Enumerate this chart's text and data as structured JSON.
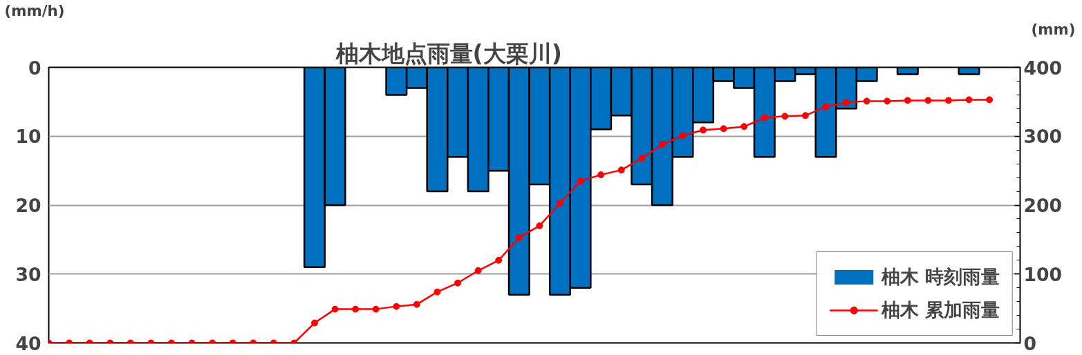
{
  "chart_data": {
    "type": "bar",
    "title": "柚木地点雨量(大栗川)",
    "ylabel": "(mm/h)",
    "y2label": "(mm)",
    "categories": [
      null,
      null,
      null,
      null,
      null,
      null,
      null,
      null,
      null,
      null,
      null,
      null,
      null,
      null,
      null,
      null,
      null,
      null,
      null,
      null,
      null,
      null,
      null,
      null,
      null,
      null,
      null,
      null,
      null,
      null,
      null,
      null,
      null,
      null,
      null,
      null,
      null,
      null,
      null,
      null,
      null,
      null,
      null,
      null,
      null,
      null,
      null
    ],
    "ylim": [
      40,
      0
    ],
    "yticks": [
      0,
      10,
      20,
      30,
      40
    ],
    "y2lim": [
      0,
      400
    ],
    "y2ticks": [
      0,
      100,
      200,
      300,
      400
    ],
    "grid": "y",
    "legend": "bottom right",
    "tick_labels": "y",
    "series": [
      {
        "name": "柚木 時刻雨量",
        "color": "#0070c0",
        "values": [
          0,
          0,
          0,
          0,
          0,
          0,
          0,
          0,
          0,
          0,
          0,
          0,
          0,
          29,
          20,
          0,
          0,
          4,
          3,
          18,
          13,
          18,
          15,
          33,
          17,
          33,
          32,
          9,
          7,
          17,
          20,
          13,
          8,
          2,
          3,
          13,
          2,
          1,
          13,
          6,
          2,
          0,
          1,
          0,
          0,
          1,
          0
        ]
      },
      {
        "name": "柚木 累加雨量",
        "type": "line",
        "axis": "y2",
        "color": "#ff0000",
        "marker": "circle",
        "values": [
          0,
          0,
          0,
          0,
          0,
          0,
          0,
          0,
          0,
          0,
          0,
          0,
          0,
          29,
          49,
          49,
          49,
          53,
          56,
          74,
          87,
          105,
          120,
          153,
          170,
          203,
          235,
          244,
          251,
          268,
          288,
          301,
          309,
          311,
          314,
          327,
          329,
          330,
          343,
          349,
          351,
          351,
          352,
          352,
          352,
          353,
          353
        ]
      }
    ]
  }
}
